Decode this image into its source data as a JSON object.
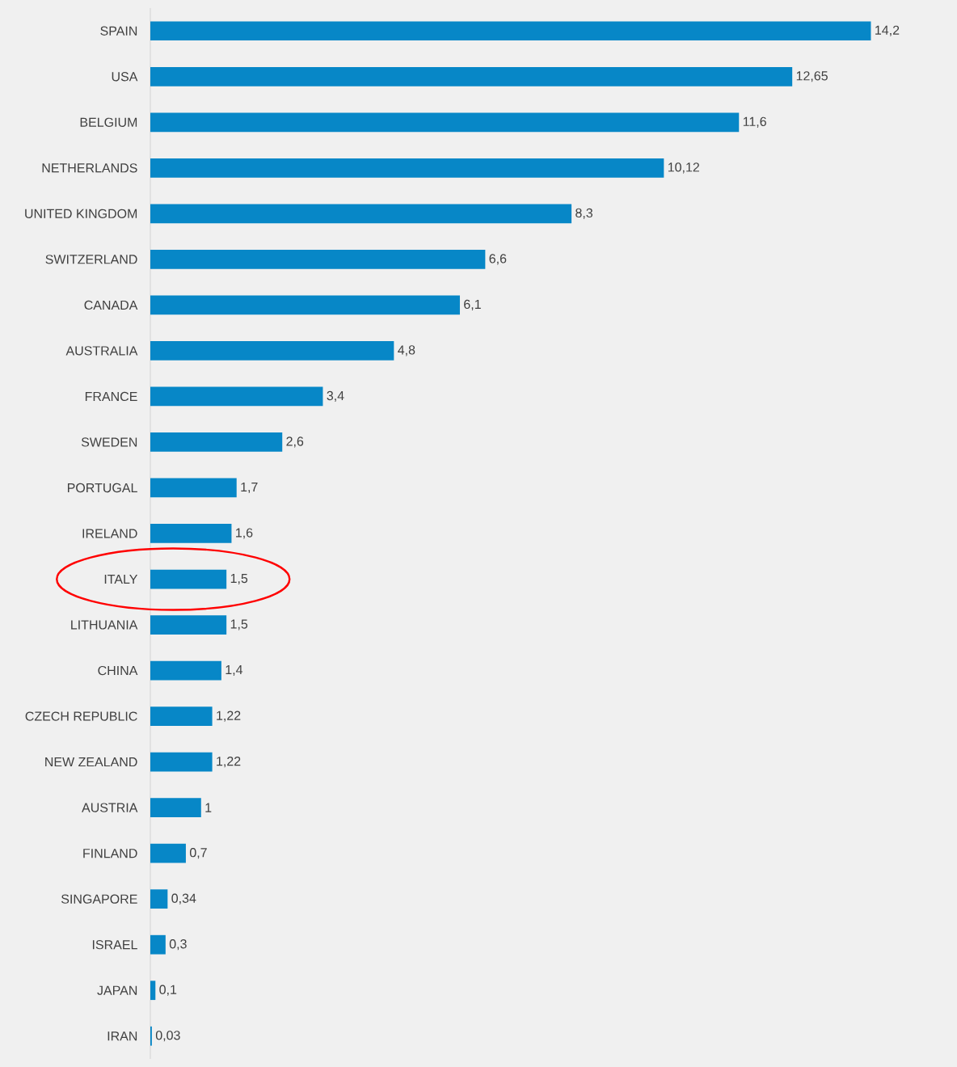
{
  "chart_data": {
    "type": "bar",
    "orientation": "horizontal",
    "color": "#0787c7",
    "categories": [
      "SPAIN",
      "USA",
      "BELGIUM",
      "NETHERLANDS",
      "UNITED KINGDOM",
      "SWITZERLAND",
      "CANADA",
      "AUSTRALIA",
      "FRANCE",
      "SWEDEN",
      "PORTUGAL",
      "IRELAND",
      "ITALY",
      "LITHUANIA",
      "CHINA",
      "CZECH REPUBLIC",
      "NEW ZEALAND",
      "AUSTRIA",
      "FINLAND",
      "SINGAPORE",
      "ISRAEL",
      "JAPAN",
      "IRAN"
    ],
    "values": [
      14.2,
      12.65,
      11.6,
      10.12,
      8.3,
      6.6,
      6.1,
      4.8,
      3.4,
      2.6,
      1.7,
      1.6,
      1.5,
      1.5,
      1.4,
      1.22,
      1.22,
      1,
      0.7,
      0.34,
      0.3,
      0.1,
      0.03
    ],
    "value_labels": [
      "14,2",
      "12,65",
      "11,6",
      "10,12",
      "8,3",
      "6,6",
      "6,1",
      "4,8",
      "3,4",
      "2,6",
      "1,7",
      "1,6",
      "1,5",
      "1,5",
      "1,4",
      "1,22",
      "1,22",
      "1",
      "0,7",
      "0,34",
      "0,3",
      "0,1",
      "0,03"
    ],
    "tick_labels": "y"
  }
}
